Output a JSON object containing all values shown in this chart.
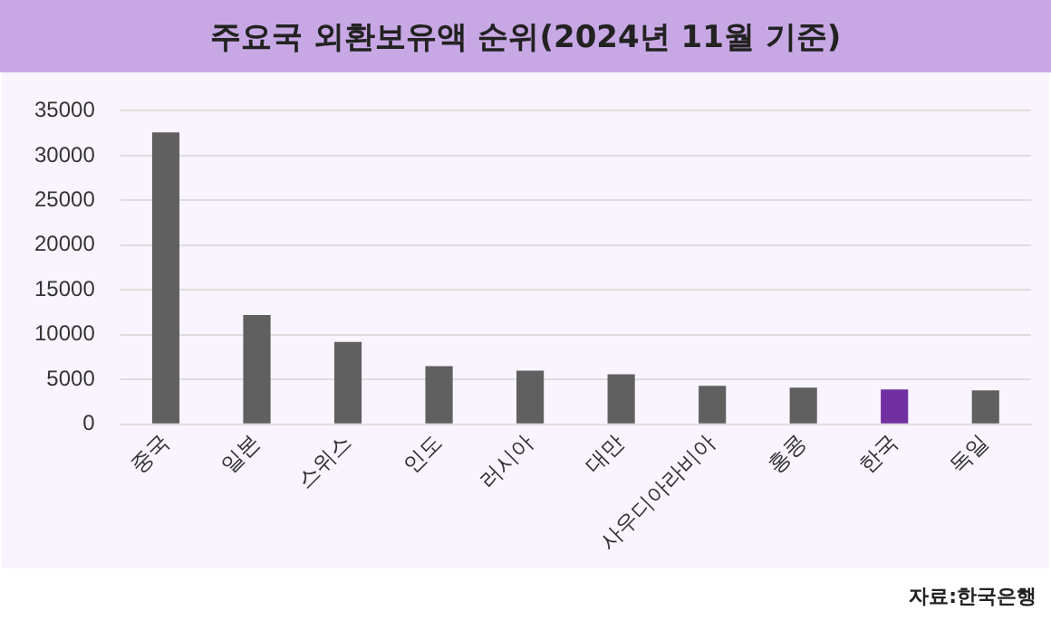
{
  "chart_data": {
    "type": "bar",
    "title": "주요국 외환보유액 순위(2024년 11월 기준)",
    "categories": [
      "중국",
      "일본",
      "스위스",
      "인도",
      "러시아",
      "대만",
      "사우디아라비아",
      "홍콩",
      "한국",
      "독일"
    ],
    "values": [
      32600,
      12200,
      9200,
      6500,
      6000,
      5600,
      4300,
      4100,
      3900,
      3800
    ],
    "colors": [
      "#606060",
      "#606060",
      "#606060",
      "#606060",
      "#606060",
      "#606060",
      "#606060",
      "#606060",
      "#7030a0",
      "#606060"
    ],
    "ylim": [
      0,
      35000
    ],
    "yticks": [
      0,
      5000,
      10000,
      15000,
      20000,
      25000,
      30000,
      35000
    ],
    "grid": "y",
    "legend": false,
    "annotations": [
      "자료:한국은행"
    ]
  }
}
